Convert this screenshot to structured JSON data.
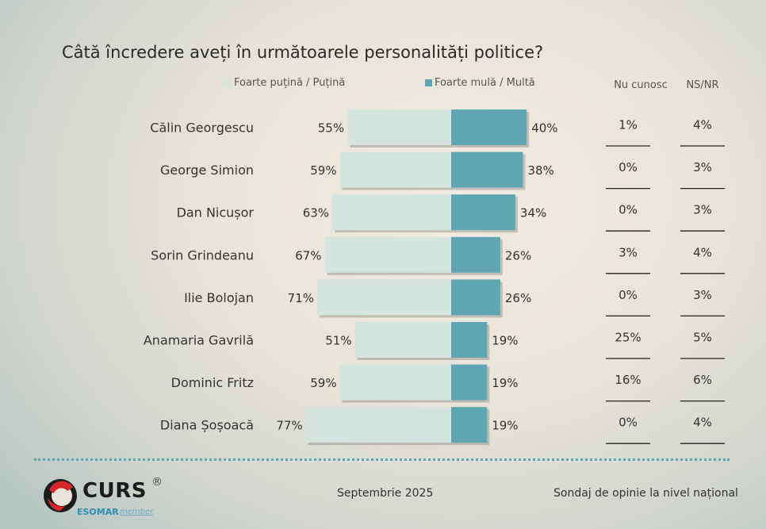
{
  "chart_data": {
    "type": "bar",
    "title": "Câtă încredere aveți în următoarele personalități politice?",
    "legend": [
      "Foarte puțină / Puțină",
      "Foarte mulă / Multă"
    ],
    "columns": [
      "Nu cunosc",
      "NS/NR"
    ],
    "categories": [
      "Călin Georgescu",
      "George Simion",
      "Dan Nicușor",
      "Sorin Grindeanu",
      "Ilie Bolojan",
      "Anamaria Gavrilă",
      "Dominic Fritz",
      "Diana Șoșoacă"
    ],
    "series": [
      {
        "name": "Foarte puțină / Puțină",
        "values": [
          55,
          59,
          63,
          67,
          71,
          51,
          59,
          77
        ],
        "color": "#d6e4df"
      },
      {
        "name": "Foarte mulă / Multă",
        "values": [
          40,
          38,
          34,
          26,
          26,
          19,
          19,
          19
        ],
        "color": "#5fa6b2"
      }
    ],
    "unknown": [
      1,
      0,
      0,
      3,
      0,
      25,
      16,
      0
    ],
    "nsnr": [
      4,
      3,
      3,
      4,
      3,
      5,
      6,
      4
    ]
  },
  "footer": {
    "date": "Septembrie 2025",
    "survey": "Sondaj de opinie la nivel național"
  },
  "logo": {
    "brand": "CURS",
    "reg": "®",
    "esomar": "ESOMAR",
    "member": "member"
  }
}
